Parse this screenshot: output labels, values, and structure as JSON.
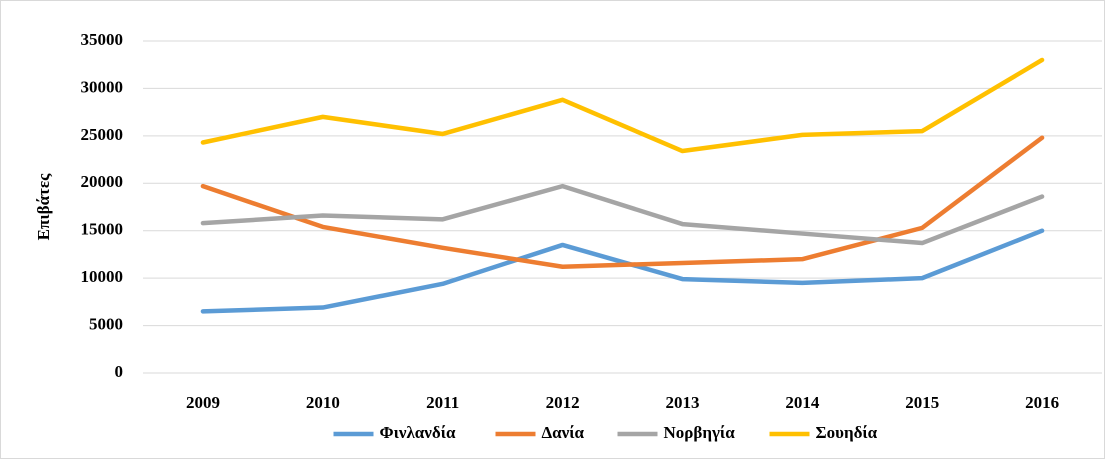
{
  "chart_data": {
    "type": "line",
    "ylabel": "Επιβάτες",
    "categories": [
      "2009",
      "2010",
      "2011",
      "2012",
      "2013",
      "2014",
      "2015",
      "2016"
    ],
    "series": [
      {
        "name": "Φινλανδία",
        "color": "#5b9bd5",
        "values": [
          6500,
          6900,
          9400,
          13500,
          9900,
          9500,
          10000,
          15000
        ]
      },
      {
        "name": "Δανία",
        "color": "#ed7d31",
        "values": [
          19700,
          15400,
          13200,
          11200,
          11600,
          12000,
          15300,
          24800
        ]
      },
      {
        "name": "Νορβηγία",
        "color": "#a5a5a5",
        "values": [
          15800,
          16600,
          16200,
          19700,
          15700,
          14700,
          13700,
          18600
        ]
      },
      {
        "name": "Σουηδία",
        "color": "#ffc000",
        "values": [
          24300,
          27000,
          25200,
          28800,
          23400,
          25100,
          25500,
          33000
        ]
      }
    ],
    "ylim": [
      0,
      35000
    ],
    "yticks": [
      0,
      5000,
      10000,
      15000,
      20000,
      25000,
      30000,
      35000
    ],
    "grid": true,
    "legend": "bottom"
  }
}
